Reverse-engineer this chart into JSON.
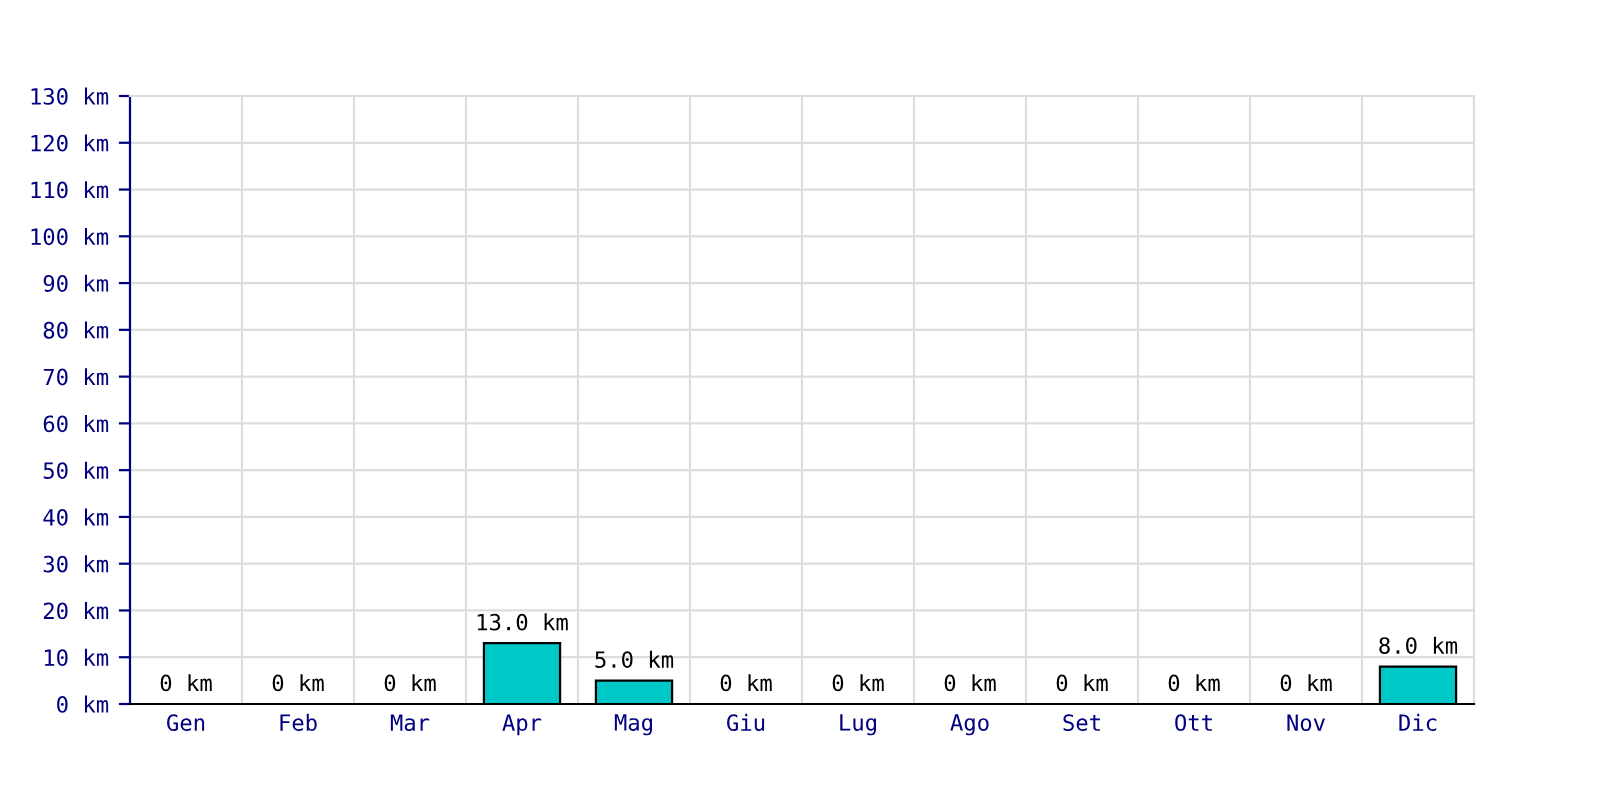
{
  "chart_data": {
    "type": "bar",
    "categories": [
      "Gen",
      "Feb",
      "Mar",
      "Apr",
      "Mag",
      "Giu",
      "Lug",
      "Ago",
      "Set",
      "Ott",
      "Nov",
      "Dic"
    ],
    "values": [
      0,
      0,
      0,
      13.0,
      5.0,
      0,
      0,
      0,
      0,
      0,
      0,
      8.0
    ],
    "value_labels": [
      "0 km",
      "0 km",
      "0 km",
      "13.0 km",
      "5.0 km",
      "0 km",
      "0 km",
      "0 km",
      "0 km",
      "0 km",
      "0 km",
      "8.0 km"
    ],
    "color": "#00c8c8",
    "ylim": [
      0,
      130
    ],
    "yticks": [
      {
        "value": 0,
        "label": "0 km"
      },
      {
        "value": 10,
        "label": "10 km"
      },
      {
        "value": 20,
        "label": "20 km"
      },
      {
        "value": 30,
        "label": "30 km"
      },
      {
        "value": 40,
        "label": "40 km"
      },
      {
        "value": 50,
        "label": "50 km"
      },
      {
        "value": 60,
        "label": "60 km"
      },
      {
        "value": 70,
        "label": "70 km"
      },
      {
        "value": 80,
        "label": "80 km"
      },
      {
        "value": 90,
        "label": "90 km"
      },
      {
        "value": 100,
        "label": "100 km"
      },
      {
        "value": 110,
        "label": "110 km"
      },
      {
        "value": 120,
        "label": "120 km"
      },
      {
        "value": 130,
        "label": "130 km"
      }
    ],
    "grid": true
  }
}
